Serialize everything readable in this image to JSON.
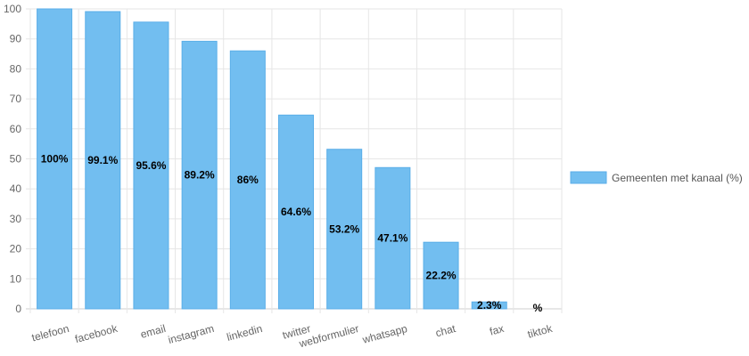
{
  "chart_data": {
    "type": "bar",
    "categories": [
      "telefoon",
      "facebook",
      "email",
      "instagram",
      "linkedin",
      "twitter",
      "webformulier",
      "whatsapp",
      "chat",
      "fax",
      "tiktok"
    ],
    "series": [
      {
        "name": "Gemeenten met kanaal (%)",
        "values": [
          100,
          99.1,
          95.6,
          89.2,
          86,
          64.6,
          53.2,
          47.1,
          22.2,
          2.3,
          null
        ],
        "data_labels": [
          "100%",
          "99.1%",
          "95.6%",
          "89.2%",
          "86%",
          "64.6%",
          "53.2%",
          "47.1%",
          "22.2%",
          "2.3%",
          "%"
        ]
      }
    ],
    "ylim": [
      0,
      100
    ],
    "yticks": [
      0,
      10,
      20,
      30,
      40,
      50,
      60,
      70,
      80,
      90,
      100
    ],
    "grid": true,
    "legend_position": "right",
    "colors": {
      "bar_fill": "#72bef0",
      "bar_stroke": "#5aaee8",
      "grid": "#e6e6e6"
    }
  }
}
